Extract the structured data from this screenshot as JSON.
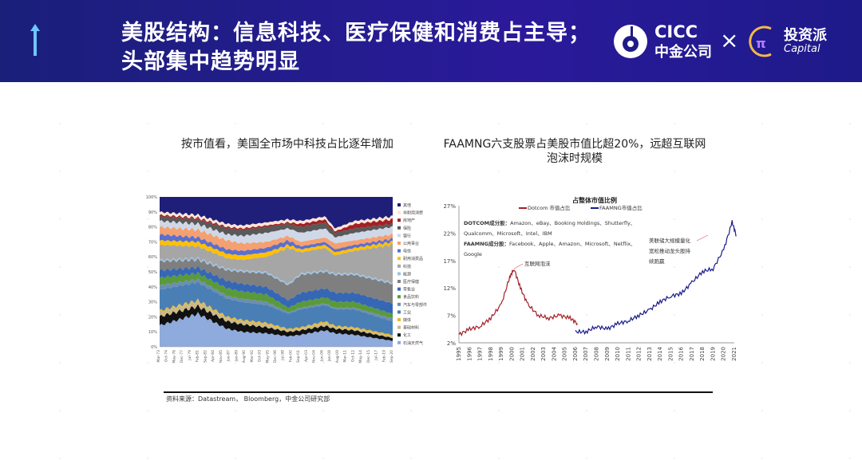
{
  "header": {
    "title_line1": "美股结构：信息科技、医疗保健和消费占主导；",
    "title_line2": "头部集中趋势明显",
    "logo_cicc_en": "CICC",
    "logo_cicc_cn": "中金公司",
    "times": "×",
    "logo_tzp_cn": "投资派",
    "logo_tzp_en": "Capital"
  },
  "colors": {
    "header": "#1f1c85",
    "dotcom": "#a31f24",
    "faamng": "#1a1a8c"
  },
  "source": "资料来源：Datastream， Bloomberg，中金公司研究部",
  "chart_data": [
    {
      "type": "area",
      "title": "按市值看，美国全市场中科技占比逐年增加",
      "ylim": [
        0,
        100
      ],
      "yticks": [
        "0%",
        "10%",
        "20%",
        "30%",
        "40%",
        "50%",
        "60%",
        "70%",
        "80%",
        "90%",
        "100%"
      ],
      "xticks": [
        "Mar-73",
        "Oct-74",
        "May-76",
        "Dec-77",
        "Jul-79",
        "Feb-81",
        "Sep-82",
        "Apr-84",
        "Nov-85",
        "Jun-87",
        "Jan-89",
        "Aug-90",
        "Mar-92",
        "Oct-93",
        "May-95",
        "Dec-96",
        "Jul-98",
        "Feb-00",
        "Sep-01",
        "Apr-03",
        "Nov-04",
        "Jun-06",
        "Jan-08",
        "Aug-09",
        "Mar-11",
        "Oct-12",
        "May-14",
        "Dec-15",
        "Jul-17",
        "Feb-19",
        "Sep-20"
      ],
      "x": [
        1973,
        1981,
        1987,
        1990,
        1995,
        1999.5,
        2002,
        2007,
        2009,
        2013,
        2020.7
      ],
      "series": [
        {
          "name": "石油天然气",
          "color": "#8faadc",
          "values": [
            14,
            22,
            12,
            10,
            9,
            7,
            8,
            11,
            9,
            8,
            4
          ]
        },
        {
          "name": "化工",
          "color": "#111111",
          "values": [
            6,
            5,
            5,
            5,
            4,
            3,
            3,
            3,
            3,
            3,
            2
          ]
        },
        {
          "name": "基础材料",
          "color": "#c9b98a",
          "values": [
            3,
            3,
            2,
            2,
            2,
            1,
            1,
            2,
            1,
            1,
            1
          ]
        },
        {
          "name": "媒体",
          "color": "#e8b830",
          "values": [
            1,
            1,
            1,
            1,
            1,
            1,
            1,
            1,
            1,
            1,
            1
          ]
        },
        {
          "name": "工业",
          "color": "#4a7fb5",
          "values": [
            14,
            12,
            12,
            12,
            12,
            10,
            12,
            11,
            11,
            12,
            9
          ]
        },
        {
          "name": "汽车与零部件",
          "color": "#6d8db0",
          "values": [
            3,
            2,
            2,
            2,
            2,
            1,
            1,
            1,
            1,
            1,
            2
          ]
        },
        {
          "name": "食品饮料",
          "color": "#5a9a3a",
          "values": [
            5,
            4,
            5,
            5,
            5,
            3,
            4,
            4,
            4,
            4,
            3
          ]
        },
        {
          "name": "零售业",
          "color": "#3567b5",
          "values": [
            5,
            4,
            5,
            5,
            5,
            5,
            6,
            6,
            6,
            6,
            7
          ]
        },
        {
          "name": "医疗保健",
          "color": "#7f7f7f",
          "values": [
            6,
            5,
            7,
            8,
            9,
            10,
            12,
            11,
            12,
            12,
            13
          ]
        },
        {
          "name": "能源",
          "color": "#9dc3e6",
          "values": [
            1,
            1,
            1,
            1,
            1,
            1,
            1,
            1,
            1,
            1,
            1
          ]
        },
        {
          "name": "科技",
          "color": "#a6a6a6",
          "values": [
            10,
            8,
            7,
            7,
            10,
            24,
            14,
            15,
            12,
            15,
            25
          ]
        },
        {
          "name": "耐用消费品",
          "color": "#ffc000",
          "values": [
            3,
            3,
            3,
            3,
            3,
            2,
            2,
            2,
            2,
            2,
            2
          ]
        },
        {
          "name": "电信",
          "color": "#5b6fd0",
          "values": [
            4,
            3,
            3,
            3,
            3,
            3,
            2,
            2,
            2,
            2,
            2
          ]
        },
        {
          "name": "公用事业",
          "color": "#f4a070",
          "values": [
            5,
            5,
            6,
            5,
            4,
            3,
            3,
            3,
            4,
            3,
            3
          ]
        },
        {
          "name": "银行",
          "color": "#d0d8e8",
          "values": [
            4,
            4,
            4,
            5,
            6,
            5,
            6,
            6,
            4,
            5,
            5
          ]
        },
        {
          "name": "保险",
          "color": "#595959",
          "values": [
            3,
            3,
            4,
            4,
            4,
            3,
            4,
            4,
            3,
            3,
            2
          ]
        },
        {
          "name": "房地产",
          "color": "#a31f24",
          "values": [
            1,
            1,
            1,
            1,
            1,
            1,
            2,
            2,
            1,
            3,
            3
          ]
        },
        {
          "name": "非耐用消费",
          "color": "#fce4d6",
          "values": [
            2,
            2,
            2,
            2,
            2,
            2,
            2,
            2,
            2,
            2,
            2
          ]
        },
        {
          "name": "其他",
          "color": "#1f1f7a",
          "values": null
        }
      ]
    },
    {
      "type": "line",
      "title_line1": "FAAMNG六支股票占美股市值比超20%，远超互联网",
      "title_line2": "泡沫时规模",
      "subtitle": "占整体市值比例",
      "ylim": [
        2,
        27
      ],
      "xlim": [
        1995,
        2021
      ],
      "yticks": [
        "2%",
        "7%",
        "12%",
        "17%",
        "22%",
        "27%"
      ],
      "xticks": [
        "1995",
        "1996",
        "1997",
        "1998",
        "1999",
        "2000",
        "2001",
        "2002",
        "2003",
        "2004",
        "2005",
        "2006",
        "2007",
        "2008",
        "2009",
        "2010",
        "2011",
        "2012",
        "2013",
        "2014",
        "2015",
        "2016",
        "2017",
        "2018",
        "2019",
        "2020",
        "2021"
      ],
      "series": [
        {
          "name": "Dotcom 市值占比",
          "color": "#a31f24",
          "x": [
            1995,
            1996,
            1997,
            1998,
            1999,
            1999.8,
            2000.2,
            2000.8,
            2001.5,
            2002.5,
            2003.5,
            2004.5,
            2005.5,
            2006.2
          ],
          "y": [
            3.5,
            4.5,
            5,
            6.5,
            9,
            14,
            15.5,
            12,
            9,
            7,
            6.5,
            7,
            6.5,
            5.5
          ]
        },
        {
          "name": "FAAMNG市值占比",
          "color": "#1a1a8c",
          "x": [
            2006,
            2007,
            2008,
            2009,
            2010,
            2011,
            2012,
            2013,
            2014,
            2015,
            2016,
            2017,
            2018,
            2019,
            2020,
            2020.8,
            2021.2
          ],
          "y": [
            4,
            4,
            5,
            4.5,
            5.5,
            6,
            7,
            8,
            9.5,
            10.5,
            11,
            13,
            15,
            15.5,
            19,
            24,
            21.5
          ]
        }
      ],
      "annotations": {
        "dotcom_members_label": "DOTCOM成分股：",
        "dotcom_members_1": "Amazon、eBay、Booking Holdings、Shutterfly、",
        "dotcom_members_2": "Qualcomm、Microsoft、Intel、IBM",
        "faamng_members_label": "FAAMNG成分股：",
        "faamng_members_1": "Facebook、Apple、Amazon、Microsoft、Netflix、",
        "faamng_members_2": "Google",
        "bubble": "互联网泡沫",
        "qe_1": "美联储大规模量化",
        "qe_2": "宽松推动龙头股持",
        "qe_3": "续跑赢"
      }
    }
  ]
}
